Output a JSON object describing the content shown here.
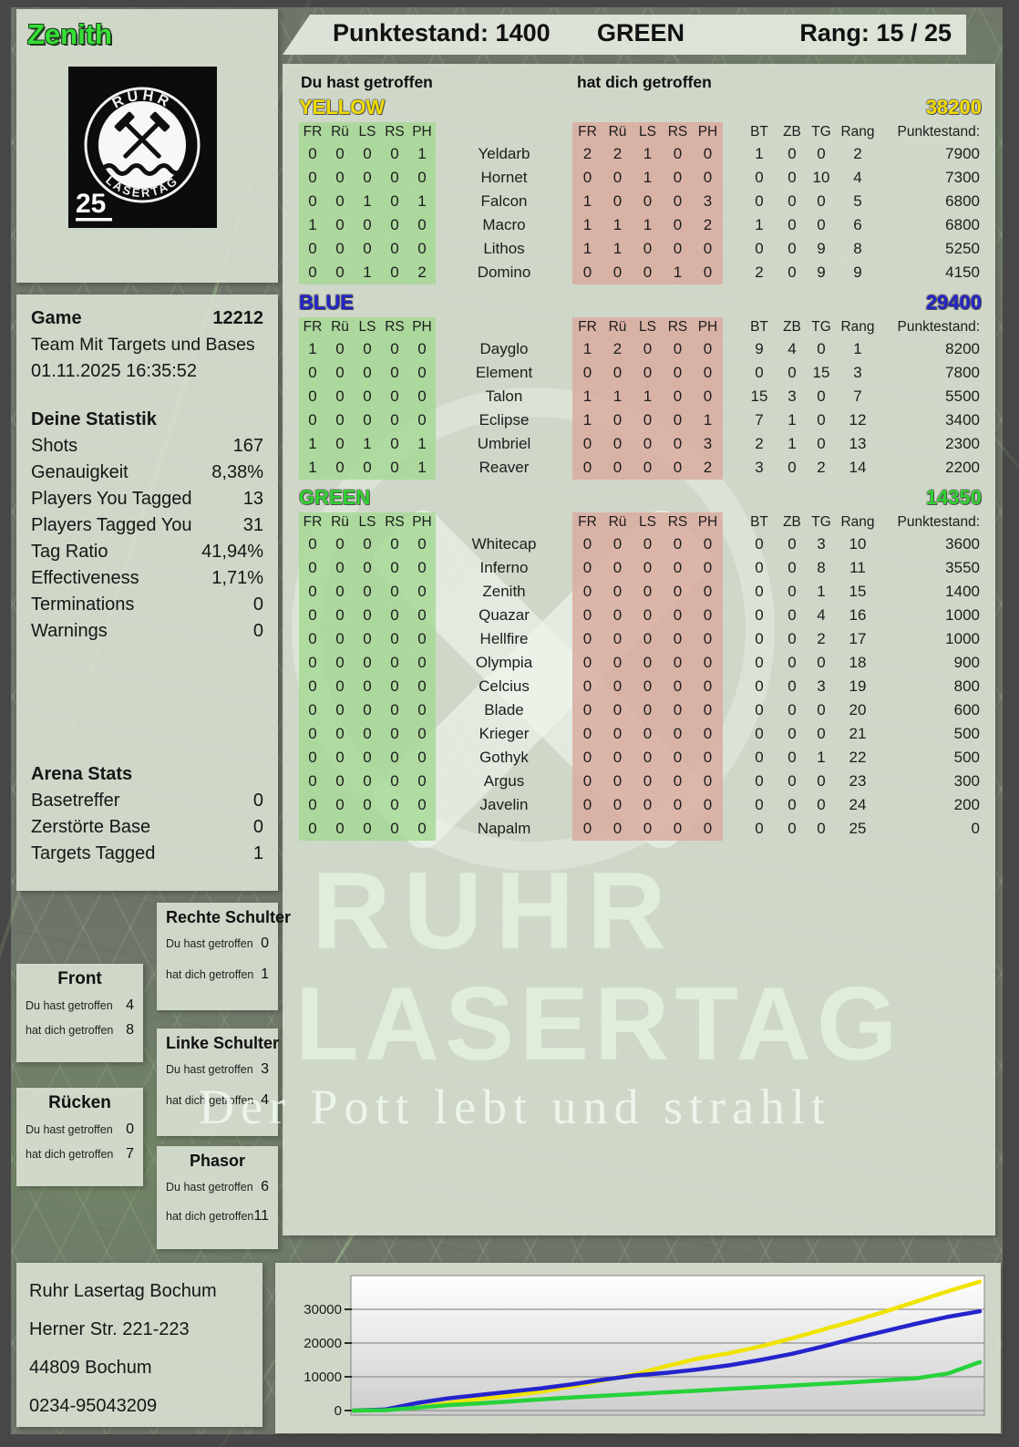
{
  "header": {
    "player_name": "Zenith",
    "score_label": "Punktestand:",
    "score_value": "1400",
    "team": "GREEN",
    "rank_label": "Rang:",
    "rank_value": "15 / 25"
  },
  "logo": {
    "arc_top": "RUHR",
    "arc_bottom": "LASERTAG",
    "badge": "25"
  },
  "game_panel": {
    "game_label": "Game",
    "game_number": "12212",
    "mode": "Team Mit Targets und Bases",
    "datetime": "01.11.2025 16:35:52",
    "stats_title": "Deine Statistik",
    "stats": [
      {
        "label": "Shots",
        "value": "167"
      },
      {
        "label": "Genauigkeit",
        "value": "8,38%"
      },
      {
        "label": "Players You Tagged",
        "value": "13"
      },
      {
        "label": "Players Tagged You",
        "value": "31"
      },
      {
        "label": "Tag Ratio",
        "value": "41,94%"
      },
      {
        "label": "Effectiveness",
        "value": "1,71%"
      },
      {
        "label": "Terminations",
        "value": "0"
      },
      {
        "label": "Warnings",
        "value": "0"
      }
    ],
    "arena_title": "Arena Stats",
    "arena_stats": [
      {
        "label": "Basetreffer",
        "value": "0"
      },
      {
        "label": "Zerstörte Base",
        "value": "0"
      },
      {
        "label": "Targets Tagged",
        "value": "1"
      }
    ]
  },
  "main": {
    "you_hit_label": "Du hast getroffen",
    "hit_you_label": "hat dich getroffen",
    "col_headers_left": [
      "FR",
      "Rü",
      "LS",
      "RS",
      "PH"
    ],
    "col_headers_right": [
      "FR",
      "Rü",
      "LS",
      "RS",
      "PH"
    ],
    "col_headers_meta": [
      "BT",
      "ZB",
      "TG",
      "Rang",
      "Punktestand:"
    ],
    "teams": [
      {
        "name": "YELLOW",
        "score": "38200",
        "color": "#f2dc00",
        "rows": [
          {
            "you": [
              0,
              0,
              0,
              0,
              1
            ],
            "name": "Yeldarb",
            "them": [
              2,
              2,
              1,
              0,
              0
            ],
            "bt": 1,
            "zb": 0,
            "tg": 0,
            "rang": 2,
            "points": "7900"
          },
          {
            "you": [
              0,
              0,
              0,
              0,
              0
            ],
            "name": "Hornet",
            "them": [
              0,
              0,
              1,
              0,
              0
            ],
            "bt": 0,
            "zb": 0,
            "tg": 10,
            "rang": 4,
            "points": "7300"
          },
          {
            "you": [
              0,
              0,
              1,
              0,
              1
            ],
            "name": "Falcon",
            "them": [
              1,
              0,
              0,
              0,
              3
            ],
            "bt": 0,
            "zb": 0,
            "tg": 0,
            "rang": 5,
            "points": "6800"
          },
          {
            "you": [
              1,
              0,
              0,
              0,
              0
            ],
            "name": "Macro",
            "them": [
              1,
              1,
              1,
              0,
              2
            ],
            "bt": 1,
            "zb": 0,
            "tg": 0,
            "rang": 6,
            "points": "6800"
          },
          {
            "you": [
              0,
              0,
              0,
              0,
              0
            ],
            "name": "Lithos",
            "them": [
              1,
              1,
              0,
              0,
              0
            ],
            "bt": 0,
            "zb": 0,
            "tg": 9,
            "rang": 8,
            "points": "5250"
          },
          {
            "you": [
              0,
              0,
              1,
              0,
              2
            ],
            "name": "Domino",
            "them": [
              0,
              0,
              0,
              1,
              0
            ],
            "bt": 2,
            "zb": 0,
            "tg": 9,
            "rang": 9,
            "points": "4150"
          }
        ]
      },
      {
        "name": "BLUE",
        "score": "29400",
        "color": "#2323cb",
        "rows": [
          {
            "you": [
              1,
              0,
              0,
              0,
              0
            ],
            "name": "Dayglo",
            "them": [
              1,
              2,
              0,
              0,
              0
            ],
            "bt": 9,
            "zb": 4,
            "tg": 0,
            "rang": 1,
            "points": "8200"
          },
          {
            "you": [
              0,
              0,
              0,
              0,
              0
            ],
            "name": "Element",
            "them": [
              0,
              0,
              0,
              0,
              0
            ],
            "bt": 0,
            "zb": 0,
            "tg": 15,
            "rang": 3,
            "points": "7800"
          },
          {
            "you": [
              0,
              0,
              0,
              0,
              0
            ],
            "name": "Talon",
            "them": [
              1,
              1,
              1,
              0,
              0
            ],
            "bt": 15,
            "zb": 3,
            "tg": 0,
            "rang": 7,
            "points": "5500"
          },
          {
            "you": [
              0,
              0,
              0,
              0,
              0
            ],
            "name": "Eclipse",
            "them": [
              1,
              0,
              0,
              0,
              1
            ],
            "bt": 7,
            "zb": 1,
            "tg": 0,
            "rang": 12,
            "points": "3400"
          },
          {
            "you": [
              1,
              0,
              1,
              0,
              1
            ],
            "name": "Umbriel",
            "them": [
              0,
              0,
              0,
              0,
              3
            ],
            "bt": 2,
            "zb": 1,
            "tg": 0,
            "rang": 13,
            "points": "2300"
          },
          {
            "you": [
              1,
              0,
              0,
              0,
              1
            ],
            "name": "Reaver",
            "them": [
              0,
              0,
              0,
              0,
              2
            ],
            "bt": 3,
            "zb": 0,
            "tg": 2,
            "rang": 14,
            "points": "2200"
          }
        ]
      },
      {
        "name": "GREEN",
        "score": "14350",
        "color": "#2ed32e",
        "rows": [
          {
            "you": [
              0,
              0,
              0,
              0,
              0
            ],
            "name": "Whitecap",
            "them": [
              0,
              0,
              0,
              0,
              0
            ],
            "bt": 0,
            "zb": 0,
            "tg": 3,
            "rang": 10,
            "points": "3600"
          },
          {
            "you": [
              0,
              0,
              0,
              0,
              0
            ],
            "name": "Inferno",
            "them": [
              0,
              0,
              0,
              0,
              0
            ],
            "bt": 0,
            "zb": 0,
            "tg": 8,
            "rang": 11,
            "points": "3550"
          },
          {
            "you": [
              0,
              0,
              0,
              0,
              0
            ],
            "name": "Zenith",
            "them": [
              0,
              0,
              0,
              0,
              0
            ],
            "bt": 0,
            "zb": 0,
            "tg": 1,
            "rang": 15,
            "points": "1400"
          },
          {
            "you": [
              0,
              0,
              0,
              0,
              0
            ],
            "name": "Quazar",
            "them": [
              0,
              0,
              0,
              0,
              0
            ],
            "bt": 0,
            "zb": 0,
            "tg": 4,
            "rang": 16,
            "points": "1000"
          },
          {
            "you": [
              0,
              0,
              0,
              0,
              0
            ],
            "name": "Hellfire",
            "them": [
              0,
              0,
              0,
              0,
              0
            ],
            "bt": 0,
            "zb": 0,
            "tg": 2,
            "rang": 17,
            "points": "1000"
          },
          {
            "you": [
              0,
              0,
              0,
              0,
              0
            ],
            "name": "Olympia",
            "them": [
              0,
              0,
              0,
              0,
              0
            ],
            "bt": 0,
            "zb": 0,
            "tg": 0,
            "rang": 18,
            "points": "900"
          },
          {
            "you": [
              0,
              0,
              0,
              0,
              0
            ],
            "name": "Celcius",
            "them": [
              0,
              0,
              0,
              0,
              0
            ],
            "bt": 0,
            "zb": 0,
            "tg": 3,
            "rang": 19,
            "points": "800"
          },
          {
            "you": [
              0,
              0,
              0,
              0,
              0
            ],
            "name": "Blade",
            "them": [
              0,
              0,
              0,
              0,
              0
            ],
            "bt": 0,
            "zb": 0,
            "tg": 0,
            "rang": 20,
            "points": "600"
          },
          {
            "you": [
              0,
              0,
              0,
              0,
              0
            ],
            "name": "Krieger",
            "them": [
              0,
              0,
              0,
              0,
              0
            ],
            "bt": 0,
            "zb": 0,
            "tg": 0,
            "rang": 21,
            "points": "500"
          },
          {
            "you": [
              0,
              0,
              0,
              0,
              0
            ],
            "name": "Gothyk",
            "them": [
              0,
              0,
              0,
              0,
              0
            ],
            "bt": 0,
            "zb": 0,
            "tg": 1,
            "rang": 22,
            "points": "500"
          },
          {
            "you": [
              0,
              0,
              0,
              0,
              0
            ],
            "name": "Argus",
            "them": [
              0,
              0,
              0,
              0,
              0
            ],
            "bt": 0,
            "zb": 0,
            "tg": 0,
            "rang": 23,
            "points": "300"
          },
          {
            "you": [
              0,
              0,
              0,
              0,
              0
            ],
            "name": "Javelin",
            "them": [
              0,
              0,
              0,
              0,
              0
            ],
            "bt": 0,
            "zb": 0,
            "tg": 0,
            "rang": 24,
            "points": "200"
          },
          {
            "you": [
              0,
              0,
              0,
              0,
              0
            ],
            "name": "Napalm",
            "them": [
              0,
              0,
              0,
              0,
              0
            ],
            "bt": 0,
            "zb": 0,
            "tg": 0,
            "rang": 25,
            "points": "0"
          }
        ]
      }
    ]
  },
  "body_part_labels": {
    "you": "Du hast getroffen",
    "them": "hat dich getroffen"
  },
  "body_parts": [
    {
      "title": "Front",
      "you": "4",
      "them": "8"
    },
    {
      "title": "Rücken",
      "you": "0",
      "them": "7"
    },
    {
      "title": "Rechte Schulter",
      "you": "0",
      "them": "1"
    },
    {
      "title": "Linke Schulter",
      "you": "3",
      "them": "4"
    },
    {
      "title": "Phasor",
      "you": "6",
      "them": "11"
    }
  ],
  "watermark": {
    "line1": "RUHR",
    "line2": "LASERTAG",
    "tagline": "Der Pott lebt und strahlt"
  },
  "footer": {
    "venue": "Ruhr Lasertag Bochum",
    "street": "Herner Str. 221-223",
    "city": "44809 Bochum",
    "phone": "0234-95043209"
  },
  "chart_data": {
    "type": "line",
    "title": "",
    "xlabel": "",
    "ylabel": "",
    "y_ticks": [
      0,
      10000,
      20000,
      30000
    ],
    "ylim": [
      0,
      39500
    ],
    "grid": true,
    "legend": "none",
    "x_note": "cumulative team score over game time, evenly spaced samples",
    "series": [
      {
        "name": "YELLOW",
        "color": "#f0e300",
        "values": [
          0,
          200,
          800,
          2200,
          3400,
          4400,
          5600,
          7200,
          9000,
          10800,
          13200,
          15400,
          17000,
          19000,
          21400,
          24000,
          26600,
          29400,
          32400,
          35400,
          38200
        ]
      },
      {
        "name": "BLUE",
        "color": "#2424cc",
        "values": [
          0,
          300,
          2200,
          3600,
          4600,
          5600,
          6600,
          7800,
          9200,
          10400,
          11200,
          12200,
          13400,
          15000,
          16800,
          19000,
          21400,
          23600,
          25800,
          27800,
          29400
        ]
      },
      {
        "name": "GREEN",
        "color": "#27d23b",
        "values": [
          0,
          100,
          800,
          1600,
          2100,
          2700,
          3300,
          3900,
          4400,
          4900,
          5400,
          5900,
          6400,
          6900,
          7400,
          7900,
          8400,
          9000,
          9600,
          11000,
          14350
        ]
      }
    ]
  }
}
